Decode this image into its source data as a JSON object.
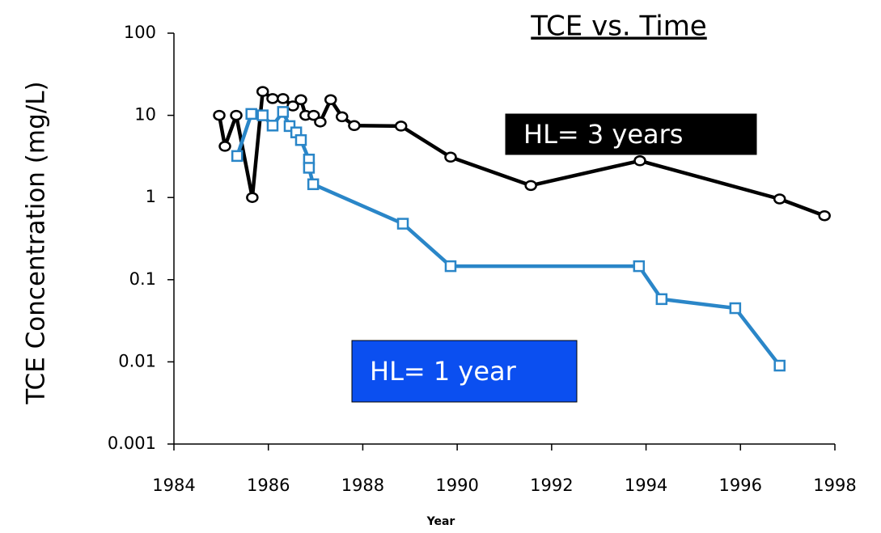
{
  "chart_data": {
    "type": "line",
    "title": "TCE vs. Time",
    "xlabel": "Year",
    "ylabel": "TCE Concentration (mg/L)",
    "ylog": true,
    "xlim": [
      1984,
      1998
    ],
    "xticks": [
      1984,
      1986,
      1988,
      1990,
      1992,
      1994,
      1996,
      1998
    ],
    "ylim": [
      0.001,
      100
    ],
    "yticks": [
      0.001,
      0.01,
      0.1,
      1,
      10,
      100
    ],
    "series": [
      {
        "color": "#000000",
        "marker": "circle",
        "x": [
          1984.96,
          1985.08,
          1985.32,
          1985.66,
          1985.88,
          1986.09,
          1986.31,
          1986.52,
          1986.69,
          1986.79,
          1986.96,
          1987.1,
          1987.32,
          1987.56,
          1987.82,
          1988.81,
          1989.86,
          1991.56,
          1993.87,
          1996.83,
          1997.78
        ],
        "values": [
          10,
          4.2,
          10,
          1,
          19.5,
          16,
          16,
          13,
          15.5,
          10,
          10,
          8.3,
          15.5,
          9.6,
          7.5,
          7.4,
          3.1,
          1.4,
          2.8,
          0.96,
          0.6
        ]
      },
      {
        "color": "#2a86c8",
        "marker": "square",
        "x": [
          1985.34,
          1985.64,
          1985.88,
          1986.09,
          1986.31,
          1986.45,
          1986.59,
          1986.69,
          1986.86,
          1986.86,
          1986.95,
          1988.85,
          1989.86,
          1993.85,
          1994.33,
          1995.89,
          1996.83
        ],
        "values": [
          3.2,
          10.4,
          10,
          7.5,
          11,
          7.4,
          6.2,
          5,
          2.9,
          2.3,
          1.45,
          0.48,
          0.146,
          0.146,
          0.058,
          0.045,
          0.009
        ]
      }
    ],
    "annotations": [
      {
        "text": "HL= 3 years",
        "background": "#000000"
      },
      {
        "text": "HL= 1 year",
        "background": "#0b4ff0"
      }
    ]
  }
}
